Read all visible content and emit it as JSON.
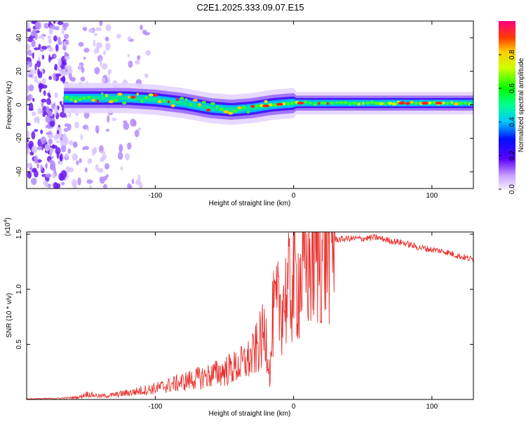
{
  "title": "C2E1.2025.333.09.07.E15",
  "chart_data": [
    {
      "type": "heatmap",
      "xlabel": "Height of straight line (km)",
      "ylabel": "Frequency (Hz)",
      "xlim": [
        -193,
        130
      ],
      "ylim": [
        -50,
        50
      ],
      "x_ticks": [
        -100,
        0,
        100
      ],
      "y_ticks": [
        -40,
        -20,
        0,
        20,
        40
      ],
      "colorbar": {
        "label": "Normalized spectral amplitude",
        "range": [
          0,
          1
        ],
        "ticks": [
          "0.0",
          "0.2",
          "0.4",
          "0.6",
          "0.8"
        ]
      },
      "ridge": {
        "x": [
          -165,
          -140,
          -120,
          -100,
          -80,
          -60,
          -45,
          -30,
          -15,
          0,
          20,
          40,
          60,
          80,
          100,
          130
        ],
        "center_hz": [
          4,
          4,
          4,
          3,
          1,
          -2,
          -3,
          -2,
          0,
          1,
          1,
          1,
          1,
          1,
          1,
          1
        ]
      }
    },
    {
      "type": "line",
      "xlabel": "Height of straight line (km)",
      "ylabel": "SNR (10 * v/v)",
      "y_multiplier": "(x10",
      "y_exponent": "4",
      "x_ticks": [
        -100,
        0,
        100
      ],
      "y_ticks": [
        "0.5",
        "1.0",
        "1.5"
      ],
      "y_tick_values": [
        0.5,
        1.0,
        1.5
      ],
      "xlim": [
        -193,
        130
      ],
      "ylim": [
        0,
        1.52
      ],
      "series": [
        {
          "color": "#e8302c",
          "x": [
            -193,
            -170,
            -155,
            -150,
            -140,
            -130,
            -120,
            -110,
            -100,
            -90,
            -80,
            -70,
            -60,
            -50,
            -40,
            -30,
            -25,
            -20,
            -17,
            -15,
            -10,
            -5,
            0,
            5,
            10,
            15,
            20,
            25,
            30,
            40,
            50,
            60,
            70,
            80,
            90,
            100,
            110,
            120,
            130
          ],
          "y": [
            0.005,
            0.01,
            0.02,
            0.05,
            0.03,
            0.04,
            0.06,
            0.08,
            0.1,
            0.13,
            0.16,
            0.19,
            0.22,
            0.26,
            0.3,
            0.38,
            0.5,
            0.62,
            0.2,
            0.75,
            0.85,
            0.95,
            1.05,
            1.1,
            1.2,
            1.32,
            1.38,
            1.42,
            1.45,
            1.46,
            1.46,
            1.47,
            1.44,
            1.42,
            1.38,
            1.36,
            1.34,
            1.3,
            1.27
          ]
        }
      ]
    }
  ]
}
